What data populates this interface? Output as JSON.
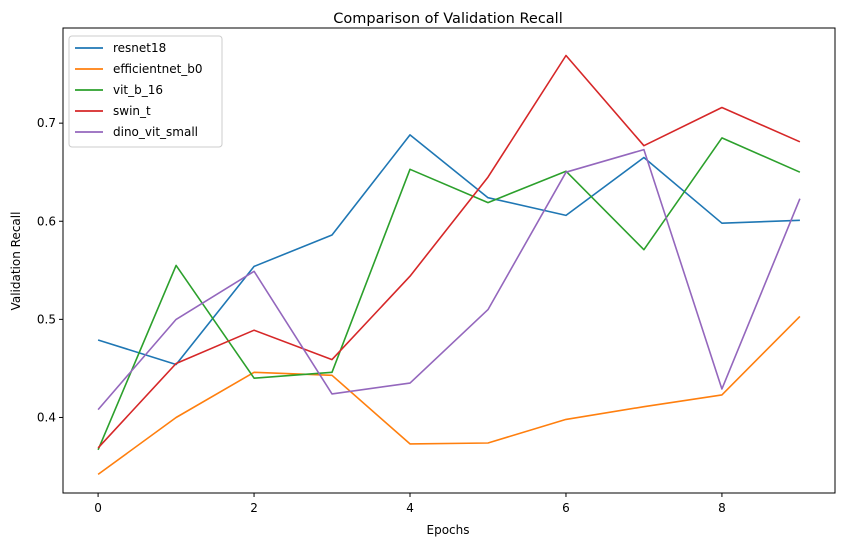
{
  "chart_data": {
    "type": "line",
    "title": "Comparison of Validation Recall",
    "xlabel": "Epochs",
    "ylabel": "Validation Recall",
    "x": [
      0,
      1,
      2,
      3,
      4,
      5,
      6,
      7,
      8,
      9
    ],
    "xlim": [
      -0.45,
      9.45
    ],
    "ylim": [
      0.323,
      0.797
    ],
    "xticks": [
      0,
      2,
      4,
      6,
      8
    ],
    "yticks": [
      0.4,
      0.5,
      0.6,
      0.7
    ],
    "ytick_labels": [
      "0.4",
      "0.5",
      "0.6",
      "0.7"
    ],
    "grid": false,
    "legend_position": "top-left",
    "series": [
      {
        "name": "resnet18",
        "color": "#1f77b4",
        "values": [
          0.479,
          0.454,
          0.554,
          0.586,
          0.688,
          0.624,
          0.606,
          0.665,
          0.598,
          0.601
        ]
      },
      {
        "name": "efficientnet_b0",
        "color": "#ff7f0e",
        "values": [
          0.342,
          0.4,
          0.446,
          0.443,
          0.373,
          0.374,
          0.398,
          0.411,
          0.423,
          0.503
        ]
      },
      {
        "name": "vit_b_16",
        "color": "#2ca02c",
        "values": [
          0.367,
          0.555,
          0.44,
          0.446,
          0.653,
          0.619,
          0.651,
          0.571,
          0.685,
          0.65
        ]
      },
      {
        "name": "swin_t",
        "color": "#d62728",
        "values": [
          0.369,
          0.455,
          0.489,
          0.459,
          0.544,
          0.645,
          0.769,
          0.677,
          0.716,
          0.681
        ]
      },
      {
        "name": "dino_vit_small",
        "color": "#9467bd",
        "values": [
          0.408,
          0.5,
          0.549,
          0.424,
          0.435,
          0.51,
          0.65,
          0.673,
          0.429,
          0.623
        ]
      }
    ]
  }
}
